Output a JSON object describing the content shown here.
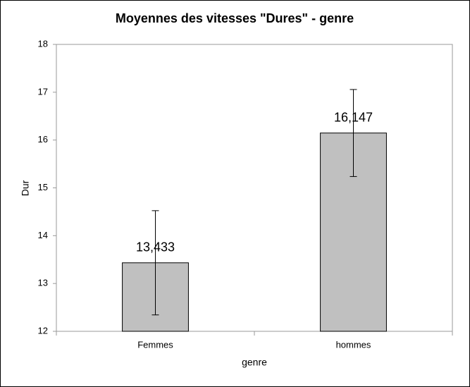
{
  "chart_data": {
    "type": "bar",
    "title": "Moyennes des vitesses \"Dures\" - genre",
    "x_label": "genre",
    "y_label": "Dur",
    "categories": [
      "Femmes",
      "hommes"
    ],
    "values": [
      13.433,
      16.147
    ],
    "value_labels": [
      "13,433",
      "16,147"
    ],
    "errors": [
      1.09,
      0.91
    ],
    "color": "#c0c0c0",
    "ylim": [
      12,
      18
    ],
    "yticks": [
      12,
      13,
      14,
      15,
      16,
      17,
      18
    ],
    "grid": false
  }
}
